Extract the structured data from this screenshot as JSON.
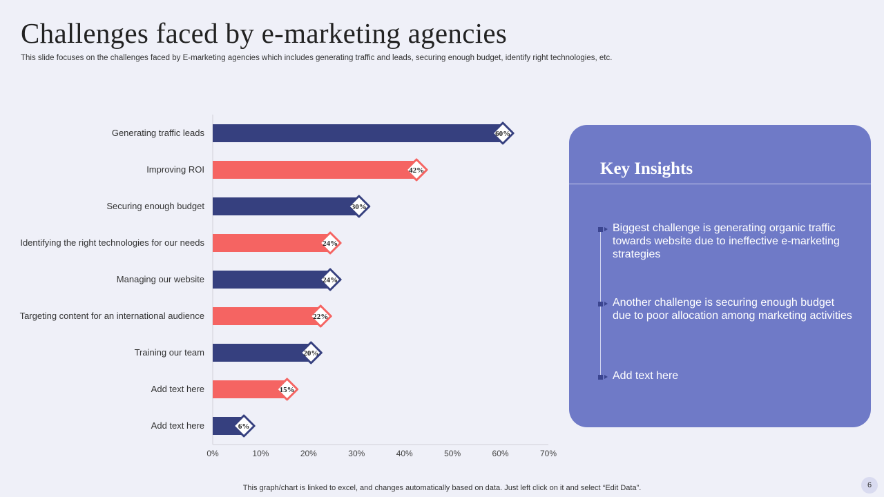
{
  "slide": {
    "title": "Challenges faced by e-marketing agencies",
    "subtitle": "This slide focuses on the challenges faced by E-marketing agencies which includes generating traffic and leads, securing enough budget, identify right technologies, etc.",
    "footer": "This graph/chart is linked to excel,  and changes automatically based on data. Just left click on it and select “Edit Data”.",
    "page_number": "6"
  },
  "insights": {
    "heading": "Key Insights",
    "items": [
      "Biggest challenge is generating organic traffic towards website due to ineffective e-marketing strategies",
      "Another challenge is securing enough budget due to poor allocation among marketing activities",
      "Add text here"
    ]
  },
  "colors": {
    "navy": "#36407f",
    "coral": "#f56462",
    "panel": "#6f7ac7"
  },
  "chart_data": {
    "type": "bar",
    "orientation": "horizontal",
    "title": "",
    "xlabel": "",
    "ylabel": "",
    "categories": [
      "Generating traffic leads",
      "Improving ROI",
      "Securing enough budget",
      "Identifying the right technologies for our needs",
      "Managing our website",
      "Targeting content for an international audience",
      "Training our team",
      "Add text here",
      "Add text here"
    ],
    "values": [
      60,
      42,
      30,
      24,
      24,
      22,
      20,
      15,
      6
    ],
    "data_labels": [
      "60%",
      "42%",
      "30%",
      "24%",
      "24%",
      "22%",
      "20%",
      "15%",
      "6%"
    ],
    "bar_colors": [
      "#36407f",
      "#f56462",
      "#36407f",
      "#f56462",
      "#36407f",
      "#f56462",
      "#36407f",
      "#f56462",
      "#36407f"
    ],
    "xlim": [
      0,
      70
    ],
    "x_ticks": [
      0,
      10,
      20,
      30,
      40,
      50,
      60,
      70
    ],
    "x_tick_labels": [
      "0%",
      "10%",
      "20%",
      "30%",
      "40%",
      "50%",
      "60%",
      "70%"
    ],
    "grid": false,
    "legend": "none"
  }
}
